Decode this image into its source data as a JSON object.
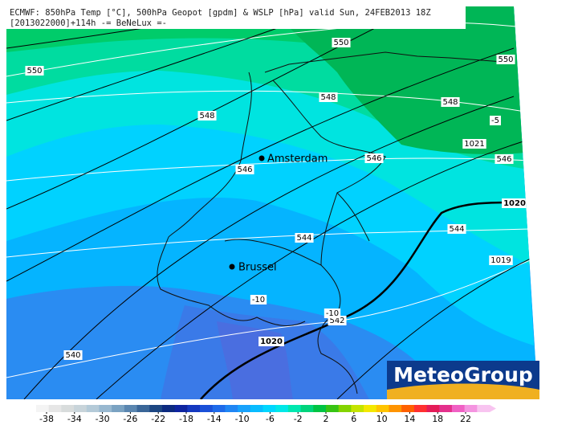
{
  "header": {
    "line1": "ECMWF: 850hPa Temp [°C], 500hPa Geopot [gpdm] & WSLP [hPa] valid Sun, 24FEB2013 18Z",
    "line2": "[2013022000]+114h -= BeNeLux =-"
  },
  "cities": [
    {
      "name": "Amsterdam"
    },
    {
      "name": "Brussel"
    }
  ],
  "contour_labels": [
    {
      "text": "550"
    },
    {
      "text": "550"
    },
    {
      "text": "550"
    },
    {
      "text": "548"
    },
    {
      "text": "548"
    },
    {
      "text": "548"
    },
    {
      "text": "546"
    },
    {
      "text": "546"
    },
    {
      "text": "546"
    },
    {
      "text": "544"
    },
    {
      "text": "544"
    },
    {
      "text": "542"
    },
    {
      "text": "540"
    },
    {
      "text": "-5"
    },
    {
      "text": "-10"
    },
    {
      "text": "-10"
    },
    {
      "text": "1021"
    },
    {
      "text": "1020"
    },
    {
      "text": "1020"
    },
    {
      "text": "1019"
    }
  ],
  "logo": "MeteoGroup",
  "colorbar": {
    "ticks": [
      -38,
      -34,
      -30,
      -26,
      -22,
      -18,
      -14,
      -10,
      -6,
      -2,
      2,
      6,
      10,
      14,
      18,
      22
    ],
    "colors": [
      "#f4f4f4",
      "#e6e6e6",
      "#d8dcdc",
      "#c8d4da",
      "#b4cad8",
      "#98b8d0",
      "#7aa2c2",
      "#5a86b0",
      "#3a6698",
      "#1c4682",
      "#0c2a80",
      "#0e24a0",
      "#1438c0",
      "#1a50d8",
      "#1e6aea",
      "#2086f4",
      "#18a2fc",
      "#08bcff",
      "#00d6ff",
      "#00e8e8",
      "#00e8b0",
      "#00d47c",
      "#00c444",
      "#38c414",
      "#84d400",
      "#c4e400",
      "#f4e800",
      "#ffc400",
      "#ff9400",
      "#ff6000",
      "#ff3030",
      "#e41c58",
      "#e4308c",
      "#f060c4",
      "#f494e0",
      "#f8c4f0"
    ]
  }
}
